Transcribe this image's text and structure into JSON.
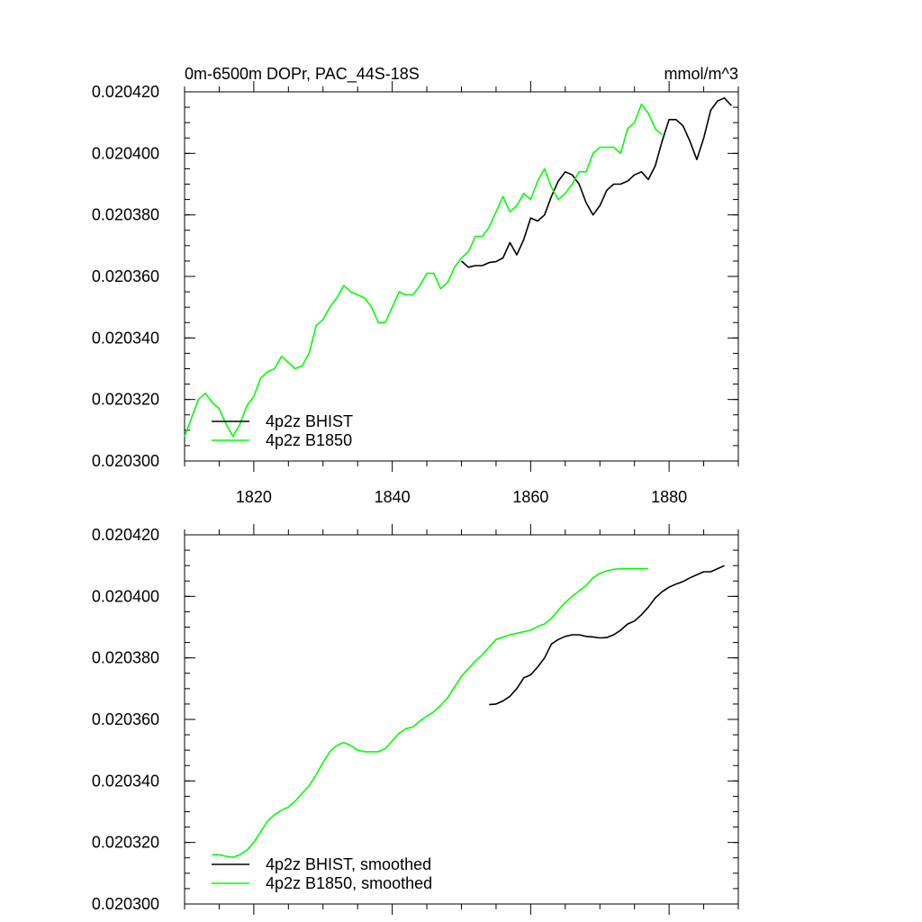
{
  "colors": {
    "bhist": "#000000",
    "b1850": "#00ff00",
    "axis": "#000000"
  },
  "chart_data": [
    {
      "type": "line",
      "title": "0m-6500m DOPr, PAC_44S-18S",
      "units": "mmol/m^3",
      "xlim": [
        1810,
        1890
      ],
      "ylim": [
        0.0203,
        0.02042
      ],
      "y_ticks": [
        0.0203,
        0.02032,
        0.02034,
        0.02036,
        0.02038,
        0.0204,
        0.02042
      ],
      "y_tick_labels": [
        "0.020300",
        "0.020320",
        "0.020340",
        "0.020360",
        "0.020380",
        "0.020400",
        "0.020420"
      ],
      "x_ticks": [
        1820,
        1840,
        1860,
        1880
      ],
      "x_tick_labels": [
        "1820",
        "1840",
        "1860",
        "1880"
      ],
      "legend_position": "bottom-left",
      "series": [
        {
          "name": "4p2z BHIST",
          "color": "#000000",
          "x": [
            1850,
            1851,
            1852,
            1853,
            1854,
            1855,
            1856,
            1857,
            1858,
            1859,
            1860,
            1861,
            1862,
            1863,
            1864,
            1865,
            1866,
            1867,
            1868,
            1869,
            1870,
            1871,
            1872,
            1873,
            1874,
            1875,
            1876,
            1877,
            1878,
            1879,
            1880,
            1881,
            1882,
            1883,
            1884,
            1885,
            1886,
            1887,
            1888,
            1889
          ],
          "y": [
            0.020365,
            0.020363,
            0.0203635,
            0.0203635,
            0.0203645,
            0.0203648,
            0.020366,
            0.020371,
            0.020367,
            0.020372,
            0.020379,
            0.020378,
            0.02038,
            0.020386,
            0.020391,
            0.020394,
            0.020393,
            0.02039,
            0.020384,
            0.02038,
            0.020383,
            0.020388,
            0.02039,
            0.02039,
            0.020391,
            0.020393,
            0.020394,
            0.0203915,
            0.020396,
            0.020404,
            0.020411,
            0.020411,
            0.020409,
            0.020404,
            0.020398,
            0.020405,
            0.020414,
            0.020417,
            0.020418,
            0.0204155
          ]
        },
        {
          "name": "4p2z B1850",
          "color": "#00ff00",
          "x": [
            1810,
            1811,
            1812,
            1813,
            1814,
            1815,
            1816,
            1817,
            1818,
            1819,
            1820,
            1821,
            1822,
            1823,
            1824,
            1825,
            1826,
            1827,
            1828,
            1829,
            1830,
            1831,
            1832,
            1833,
            1834,
            1835,
            1836,
            1837,
            1838,
            1839,
            1840,
            1841,
            1842,
            1843,
            1844,
            1845,
            1846,
            1847,
            1848,
            1849,
            1850,
            1851,
            1852,
            1853,
            1854,
            1855,
            1856,
            1857,
            1858,
            1859,
            1860,
            1861,
            1862,
            1863,
            1864,
            1865,
            1866,
            1867,
            1868,
            1869,
            1870,
            1871,
            1872,
            1873,
            1874,
            1875,
            1876,
            1877,
            1878,
            1879
          ],
          "y": [
            0.020308,
            0.020314,
            0.02032,
            0.020322,
            0.020319,
            0.020317,
            0.020312,
            0.020308,
            0.020312,
            0.020318,
            0.020321,
            0.020327,
            0.020329,
            0.02033,
            0.020334,
            0.020332,
            0.02033,
            0.020331,
            0.020335,
            0.020344,
            0.020346,
            0.02035,
            0.020353,
            0.020357,
            0.020355,
            0.020354,
            0.020353,
            0.02035,
            0.020345,
            0.020345,
            0.02035,
            0.020355,
            0.020354,
            0.020354,
            0.020357,
            0.020361,
            0.020361,
            0.020356,
            0.020358,
            0.020363,
            0.020366,
            0.020368,
            0.020373,
            0.020373,
            0.020376,
            0.020381,
            0.020386,
            0.020381,
            0.020383,
            0.020387,
            0.020385,
            0.020391,
            0.020395,
            0.020389,
            0.020385,
            0.020387,
            0.02039,
            0.020394,
            0.020394,
            0.0204,
            0.020402,
            0.020402,
            0.020402,
            0.0204,
            0.020408,
            0.02041,
            0.020416,
            0.020413,
            0.020408,
            0.020406
          ]
        }
      ]
    },
    {
      "type": "line",
      "title": "",
      "xlim": [
        1810,
        1890
      ],
      "ylim": [
        0.0203,
        0.02042
      ],
      "y_ticks": [
        0.0203,
        0.02032,
        0.02034,
        0.02036,
        0.02038,
        0.0204,
        0.02042
      ],
      "y_tick_labels": [
        "0.020300",
        "0.020320",
        "0.020340",
        "0.020360",
        "0.020380",
        "0.020400",
        "0.020420"
      ],
      "x_ticks": [
        1820,
        1840,
        1860,
        1880
      ],
      "x_tick_labels": [],
      "legend_position": "bottom-left",
      "series": [
        {
          "name": "4p2z BHIST, smoothed",
          "color": "#000000",
          "x": [
            1854,
            1855,
            1856,
            1857,
            1858,
            1859,
            1860,
            1861,
            1862,
            1863,
            1864,
            1865,
            1866,
            1867,
            1868,
            1869,
            1870,
            1871,
            1872,
            1873,
            1874,
            1875,
            1876,
            1877,
            1878,
            1879,
            1880,
            1881,
            1882,
            1883,
            1884,
            1885,
            1886,
            1887,
            1888
          ],
          "y": [
            0.0203648,
            0.020365,
            0.020366,
            0.0203675,
            0.02037,
            0.0203735,
            0.0203745,
            0.020377,
            0.02038,
            0.0203845,
            0.020386,
            0.020387,
            0.0203875,
            0.0203875,
            0.020387,
            0.0203868,
            0.0203865,
            0.0203866,
            0.0203875,
            0.020389,
            0.020391,
            0.020392,
            0.020394,
            0.0203965,
            0.0203995,
            0.0204015,
            0.020403,
            0.020404,
            0.0204048,
            0.020406,
            0.020407,
            0.020408,
            0.020408,
            0.020409,
            0.02041
          ]
        },
        {
          "name": "4p2z B1850, smoothed",
          "color": "#00ff00",
          "x": [
            1814,
            1815,
            1816,
            1817,
            1818,
            1819,
            1820,
            1821,
            1822,
            1823,
            1824,
            1825,
            1826,
            1827,
            1828,
            1829,
            1830,
            1831,
            1832,
            1833,
            1834,
            1835,
            1836,
            1837,
            1838,
            1839,
            1840,
            1841,
            1842,
            1843,
            1844,
            1845,
            1846,
            1847,
            1848,
            1849,
            1850,
            1851,
            1852,
            1853,
            1854,
            1855,
            1856,
            1857,
            1858,
            1859,
            1860,
            1861,
            1862,
            1863,
            1864,
            1865,
            1866,
            1867,
            1868,
            1869,
            1870,
            1871,
            1872,
            1873,
            1874,
            1875,
            1876,
            1877
          ],
          "y": [
            0.020316,
            0.020316,
            0.0203155,
            0.0203152,
            0.020316,
            0.0203175,
            0.02032,
            0.0203235,
            0.020327,
            0.020329,
            0.0203305,
            0.0203315,
            0.0203335,
            0.020336,
            0.0203385,
            0.020342,
            0.020346,
            0.0203495,
            0.0203515,
            0.0203525,
            0.0203515,
            0.02035,
            0.0203495,
            0.0203495,
            0.0203495,
            0.0203505,
            0.020353,
            0.0203555,
            0.020357,
            0.0203575,
            0.0203595,
            0.020361,
            0.0203625,
            0.0203645,
            0.020367,
            0.0203705,
            0.020374,
            0.0203765,
            0.020379,
            0.020381,
            0.0203835,
            0.020386,
            0.0203867,
            0.0203875,
            0.020388,
            0.0203885,
            0.020389,
            0.0203902,
            0.020391,
            0.0203928,
            0.0203955,
            0.020398,
            0.0204,
            0.0204018,
            0.0204035,
            0.020406,
            0.0204075,
            0.0204083,
            0.0204088,
            0.020409,
            0.020409,
            0.020409,
            0.020409,
            0.020409
          ]
        }
      ]
    }
  ]
}
